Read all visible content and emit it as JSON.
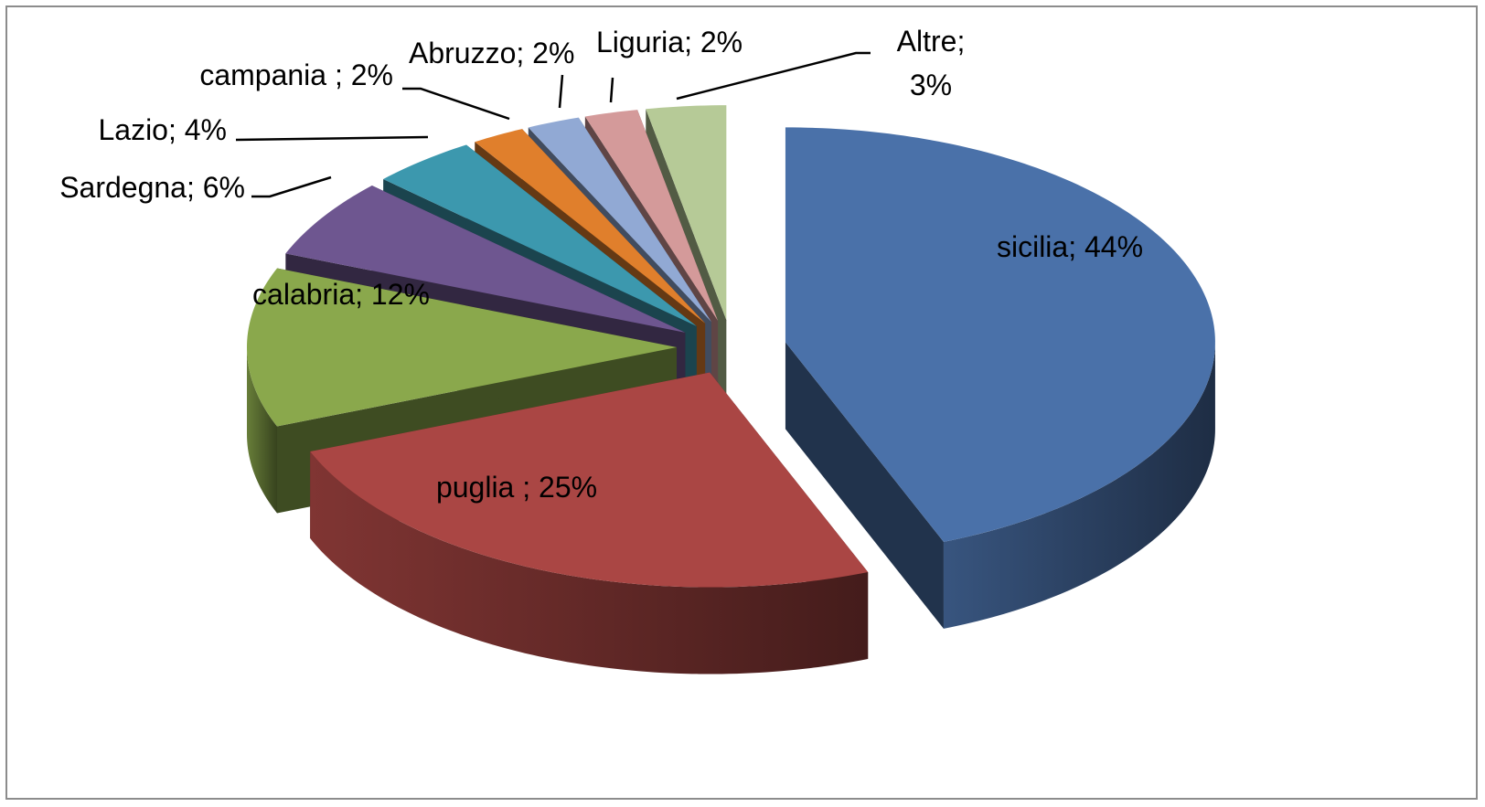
{
  "chart_data": {
    "type": "pie3d",
    "labels": [
      "sicilia; 44%",
      "puglia ; 25%",
      "calabria; 12%",
      "Sardegna; 6%",
      "Lazio; 4%",
      "campania ; 2%",
      "Abruzzo; 2%",
      "Liguria; 2%",
      "Altre; 3%"
    ],
    "values": [
      44,
      25,
      12,
      6,
      4,
      2,
      2,
      2,
      3
    ],
    "colors": [
      "#4a71a9",
      "#aa4644",
      "#8aa84c",
      "#6e5690",
      "#3c98ae",
      "#e07f2c",
      "#91a9d4",
      "#d49a9a",
      "#b6ca97"
    ]
  }
}
